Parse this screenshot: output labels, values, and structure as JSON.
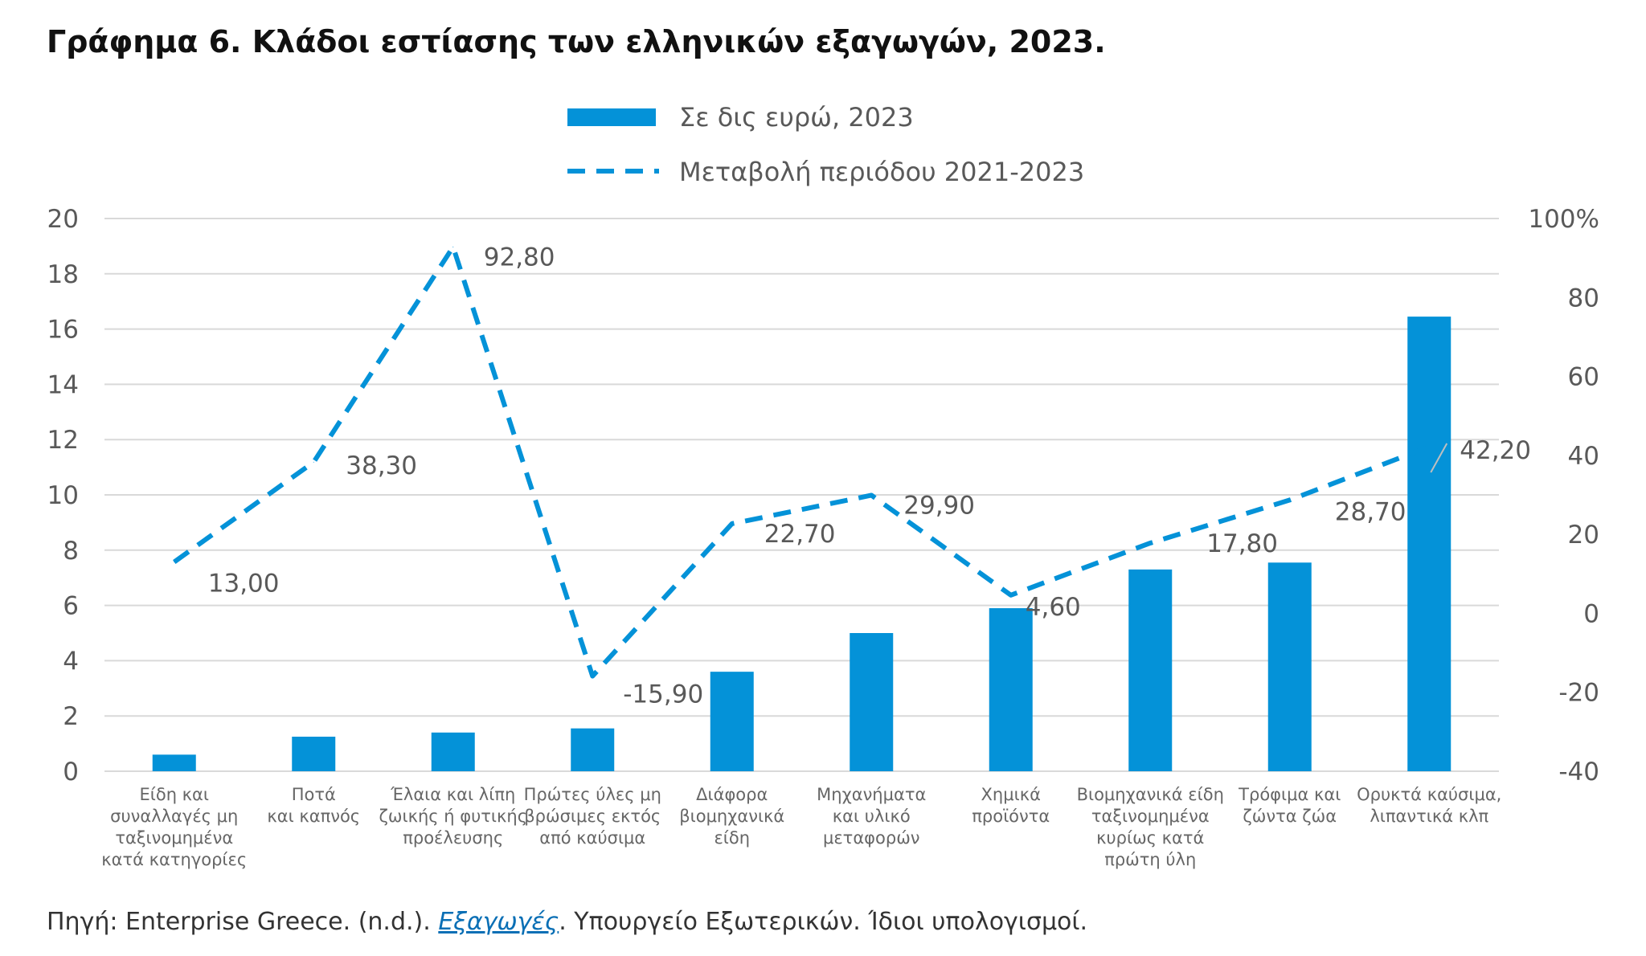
{
  "colors": {
    "bar": "#0492d8",
    "line": "#0492d8",
    "grid": "#d9d9d9",
    "tick_text": "#595959",
    "label_text": "#595959",
    "category_text": "#666666"
  },
  "chart_data": {
    "type": "bar",
    "title": "Γράφημα 6. Κλάδοι εστίασης των ελληνικών εξαγωγών, 2023.",
    "categories": [
      "Είδη και συναλλαγές μη ταξινομημένα κατά κατηγορίες",
      "Ποτά και καπνός",
      "Έλαια και λίπη ζωικής ή φυτικής προέλευσης",
      "Πρώτες ύλες μη βρώσιμες εκτός από καύσιμα",
      "Διάφορα βιομηχανικά είδη",
      "Μηχανήματα και υλικό μεταφορών",
      "Χημικά προϊόντα",
      "Βιομηχανικά είδη ταξινομημένα κυρίως κατά πρώτη ύλη",
      "Τρόφιμα και ζώντα ζώα",
      "Ορυκτά καύσιμα, λιπαντικά κλπ"
    ],
    "category_lines": [
      [
        "Είδη και",
        "συναλλαγές μη",
        "ταξινομημένα",
        "κατά κατηγορίες"
      ],
      [
        "Ποτά",
        "και καπνός"
      ],
      [
        "Έλαια και λίπη",
        "ζωικής ή φυτικής",
        "προέλευσης"
      ],
      [
        "Πρώτες ύλες μη",
        "βρώσιμες εκτός",
        "από καύσιμα"
      ],
      [
        "Διάφορα",
        "βιομηχανικά",
        "είδη"
      ],
      [
        "Μηχανήματα",
        "και υλικό",
        "μεταφορών"
      ],
      [
        "Χημικά",
        "προϊόντα"
      ],
      [
        "Βιομηχανικά είδη",
        "ταξινομημένα",
        "κυρίως κατά",
        "πρώτη ύλη"
      ],
      [
        "Τρόφιμα και",
        "ζώντα ζώα"
      ],
      [
        "Ορυκτά καύσιμα,",
        "λιπαντικά κλπ"
      ]
    ],
    "series": [
      {
        "name": "Σε δις ευρώ, 2023",
        "type": "bar",
        "axis": "left",
        "values": [
          0.6,
          1.25,
          1.4,
          1.55,
          3.6,
          5.0,
          5.9,
          7.3,
          7.55,
          16.45
        ]
      },
      {
        "name": "Μεταβολή περιόδου 2021-2023",
        "type": "line",
        "style": "dashed",
        "axis": "right",
        "values": [
          13.0,
          38.3,
          92.8,
          -15.9,
          22.7,
          29.9,
          4.6,
          17.8,
          28.7,
          42.2
        ],
        "labels": [
          "13,00",
          "38,30",
          "92,80",
          "-15,90",
          "22,70",
          "29,90",
          "4,60",
          "17,80",
          "28,70",
          "42,20"
        ]
      }
    ],
    "y_left": {
      "min": 0,
      "max": 20,
      "ticks": [
        "0",
        "2",
        "4",
        "6",
        "8",
        "10",
        "12",
        "14",
        "16",
        "18",
        "20"
      ]
    },
    "y_right": {
      "min": -40,
      "max": 100,
      "ticks": [
        "-40",
        "-20",
        "0",
        "20",
        "40",
        "60",
        "80",
        "100%"
      ]
    },
    "grid": true,
    "legend_position": "top-center"
  },
  "source": {
    "prefix": "Πηγή: Enterprise Greece. (n.d.). ",
    "link_text": "Εξαγωγές",
    "suffix": ". Υπουργείο Εξωτερικών. Ίδιοι υπολογισμοί."
  }
}
